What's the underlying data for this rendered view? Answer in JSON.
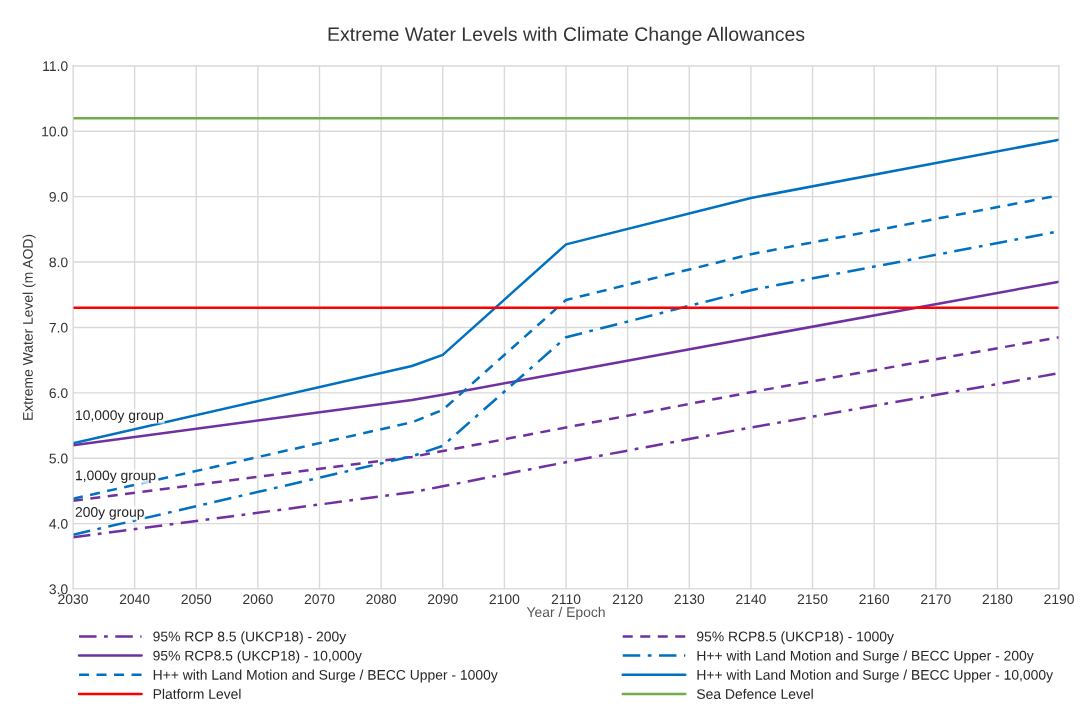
{
  "chart_data": {
    "type": "line",
    "title": "Extreme Water Levels with Climate Change Allowances",
    "xlabel": "Year / Epoch",
    "ylabel": "Extreme Water Level (m AOD)",
    "x": [
      2030,
      2085,
      2090,
      2110,
      2140,
      2190
    ],
    "series": [
      {
        "name": "95% RCP 8.5 (UKCP18) - 200y",
        "color": "#7030a0",
        "line_style": "dashdot",
        "values": [
          3.79,
          4.48,
          4.57,
          4.94,
          5.47,
          6.3
        ]
      },
      {
        "name": "95% RCP8.5 (UKCP18) - 1000y",
        "color": "#7030a0",
        "line_style": "dashed",
        "values": [
          4.35,
          5.02,
          5.11,
          5.47,
          6.01,
          6.85
        ]
      },
      {
        "name": "95% RCP8.5 (UKCP18) - 10,000y",
        "color": "#7030a0",
        "line_style": "solid",
        "values": [
          5.2,
          5.89,
          5.97,
          6.32,
          6.84,
          7.7
        ]
      },
      {
        "name": "H++ with Land Motion and Surge / BECC Upper - 200y",
        "color": "#0070c0",
        "line_style": "dashdot",
        "values": [
          3.83,
          5.03,
          5.19,
          6.85,
          7.57,
          8.47
        ]
      },
      {
        "name": "H++ with Land Motion and Surge / BECC Upper - 1000y",
        "color": "#0070c0",
        "line_style": "dashed",
        "values": [
          4.38,
          5.55,
          5.74,
          7.42,
          8.12,
          9.02
        ]
      },
      {
        "name": "H++ with Land Motion and Surge / BECC Upper - 10,000y",
        "color": "#0070c0",
        "line_style": "solid",
        "values": [
          5.23,
          6.41,
          6.58,
          8.27,
          8.98,
          9.87
        ]
      },
      {
        "name": "Platform Level",
        "color": "#ff0000",
        "line_style": "solid",
        "values": [
          7.3,
          7.3,
          7.3,
          7.3,
          7.3,
          7.3
        ]
      },
      {
        "name": "Sea Defence Level",
        "color": "#70ad47",
        "line_style": "solid",
        "values": [
          10.2,
          10.2,
          10.2,
          10.2,
          10.2,
          10.2
        ]
      }
    ],
    "annotations": [
      "10,000y group",
      "1,000y group",
      "200y group"
    ],
    "xlim": [
      2030,
      2190
    ],
    "xticks": [
      2030,
      2040,
      2050,
      2060,
      2070,
      2080,
      2090,
      2100,
      2110,
      2120,
      2130,
      2140,
      2150,
      2160,
      2170,
      2180,
      2190
    ],
    "ylim": [
      3.0,
      11.0
    ],
    "yticks": [
      {
        "value": 3,
        "label": "3.0"
      },
      {
        "value": 4,
        "label": "4.0"
      },
      {
        "value": 5,
        "label": "5.0"
      },
      {
        "value": 6,
        "label": "6.0"
      },
      {
        "value": 7,
        "label": "7.0"
      },
      {
        "value": 8,
        "label": "8.0"
      },
      {
        "value": 9,
        "label": "9.0"
      },
      {
        "value": 10,
        "label": "10.0"
      },
      {
        "value": 11,
        "label": "11.0"
      }
    ],
    "grid": true,
    "legend": "bottom",
    "marker": "none"
  }
}
